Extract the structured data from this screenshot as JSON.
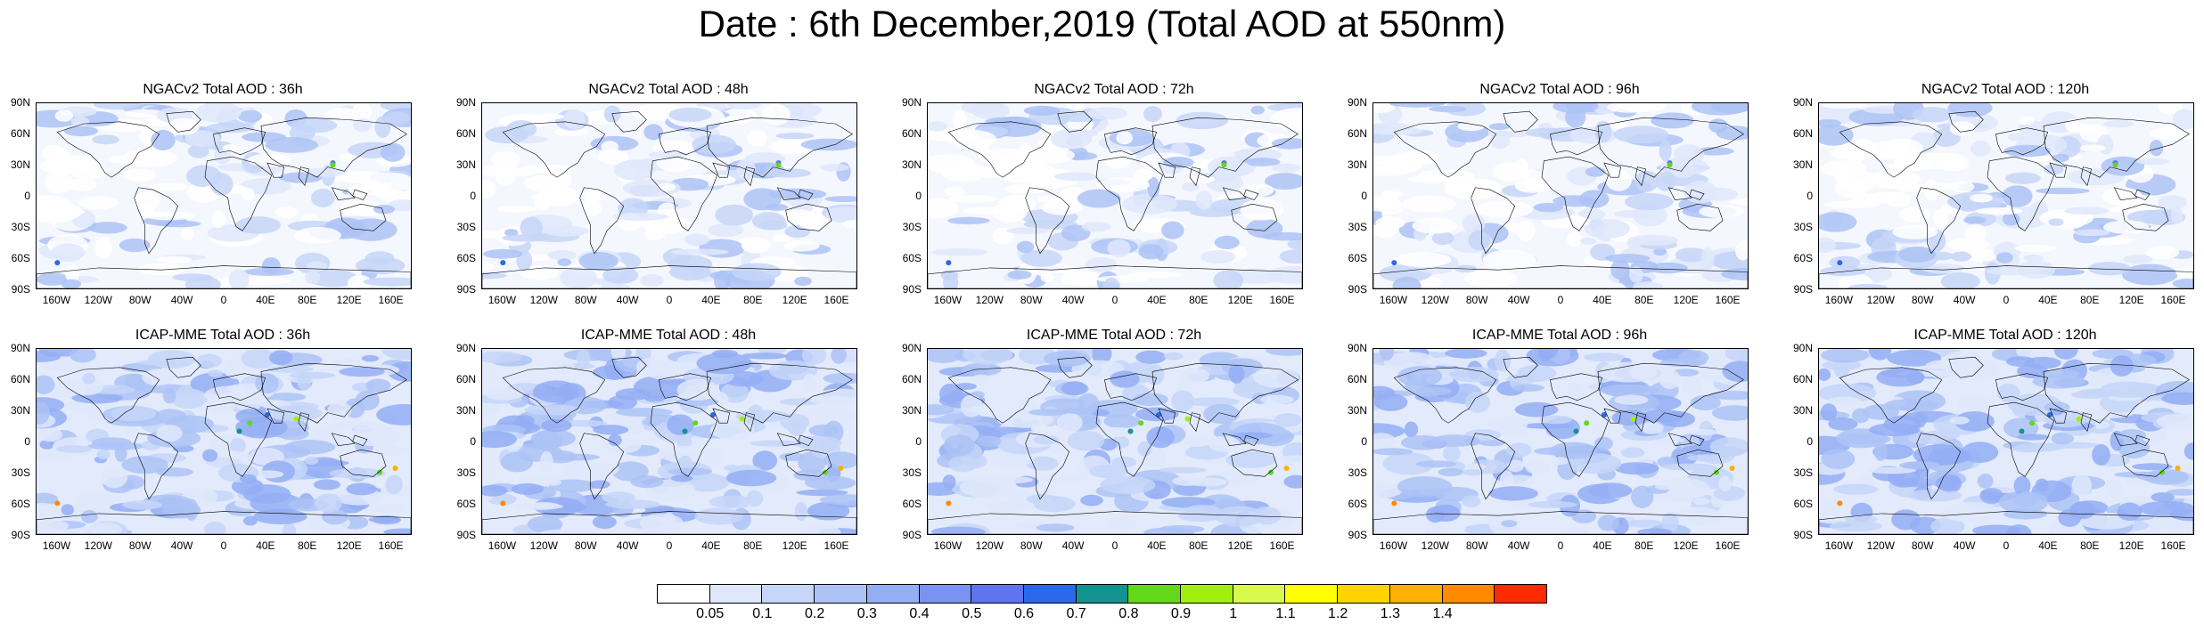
{
  "title": "Date : 6th December,2019 (Total AOD at 550nm)",
  "panels": [
    {
      "title": "NGACv2 Total AOD : 36h"
    },
    {
      "title": "NGACv2 Total AOD : 48h"
    },
    {
      "title": "NGACv2 Total AOD : 72h"
    },
    {
      "title": "NGACv2 Total AOD : 96h"
    },
    {
      "title": "NGACv2 Total AOD : 120h"
    },
    {
      "title": "ICAP-MME Total AOD : 36h"
    },
    {
      "title": "ICAP-MME Total AOD : 48h"
    },
    {
      "title": "ICAP-MME Total AOD : 72h"
    },
    {
      "title": "ICAP-MME Total AOD : 96h"
    },
    {
      "title": "ICAP-MME Total AOD : 120h"
    }
  ],
  "lat_labels": [
    "90N",
    "60N",
    "30N",
    "0",
    "30S",
    "60S",
    "90S"
  ],
  "lon_labels": [
    "160W",
    "120W",
    "80W",
    "40W",
    "0",
    "40E",
    "80E",
    "120E",
    "160E"
  ],
  "colorbar": {
    "labels": [
      "0.05",
      "0.1",
      "0.2",
      "0.3",
      "0.4",
      "0.5",
      "0.6",
      "0.7",
      "0.8",
      "0.9",
      "1",
      "1.1",
      "1.2",
      "1.3",
      "1.4"
    ],
    "colors": [
      "#ffffff",
      "#dfe8fb",
      "#c6d6f8",
      "#adc3f6",
      "#94aef4",
      "#7a92f2",
      "#5f74ee",
      "#2a69e8",
      "#12938f",
      "#63d81a",
      "#a3ef0c",
      "#d9f84e",
      "#ffff00",
      "#ffd300",
      "#ffb000",
      "#ff8a00",
      "#ff2b00"
    ]
  }
}
